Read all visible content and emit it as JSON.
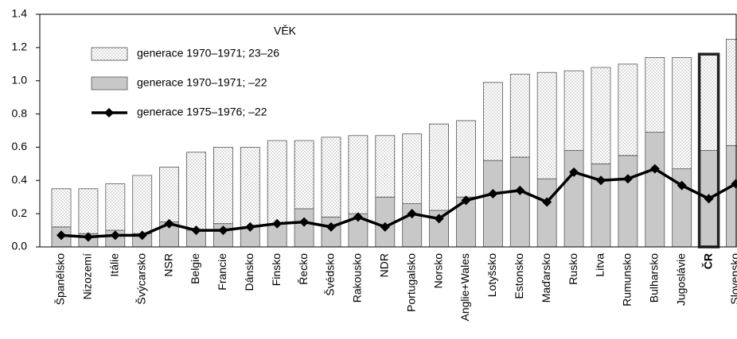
{
  "chart_data": {
    "type": "stacked_bar_line",
    "legend_title": "VĚK",
    "categories": [
      "Španělsko",
      "Nizozemí",
      "Itálie",
      "Švýcarsko",
      "NSR",
      "Belgie",
      "Francie",
      "Dánsko",
      "Finsko",
      "Řecko",
      "Švédsko",
      "Rakousko",
      "NDR",
      "Portugalsko",
      "Norsko",
      "Anglie+Wales",
      "Lotyšsko",
      "Estonsko",
      "Maďarsko",
      "Rusko",
      "Litva",
      "Rumunsko",
      "Bulharsko",
      "Jugoslávie",
      "ČR",
      "Slovensko"
    ],
    "series": [
      {
        "name": "generace 1970–1971; –22",
        "color": "#c8c8c8",
        "kind": "bar",
        "values": [
          0.12,
          0.08,
          0.1,
          0.08,
          0.15,
          0.1,
          0.14,
          0.12,
          0.14,
          0.23,
          0.18,
          0.2,
          0.3,
          0.26,
          0.22,
          0.3,
          0.52,
          0.54,
          0.41,
          0.58,
          0.5,
          0.55,
          0.69,
          0.47,
          0.58,
          0.61
        ]
      },
      {
        "name": "generace 1970–1971; 23–26",
        "color": "dotted",
        "kind": "bar",
        "values": [
          0.23,
          0.27,
          0.28,
          0.35,
          0.33,
          0.47,
          0.46,
          0.48,
          0.5,
          0.41,
          0.48,
          0.47,
          0.37,
          0.42,
          0.52,
          0.46,
          0.47,
          0.5,
          0.64,
          0.48,
          0.58,
          0.55,
          0.45,
          0.67,
          0.58,
          0.64
        ]
      },
      {
        "name": "generace 1975–1976; –22",
        "color": "#000000",
        "kind": "line",
        "values": [
          0.07,
          0.06,
          0.07,
          0.07,
          0.14,
          0.1,
          0.1,
          0.12,
          0.14,
          0.15,
          0.12,
          0.18,
          0.12,
          0.2,
          0.17,
          0.28,
          0.32,
          0.34,
          0.27,
          0.45,
          0.4,
          0.41,
          0.47,
          0.37,
          0.29,
          0.38
        ]
      }
    ],
    "highlight": 24,
    "ylim": [
      0,
      1.4
    ],
    "yticks": [
      {
        "value": 0,
        "label": "0.0"
      },
      0.2,
      0.4,
      0.6,
      0.8,
      {
        "value": 1,
        "label": "1.0"
      },
      1.2,
      1.4
    ]
  }
}
